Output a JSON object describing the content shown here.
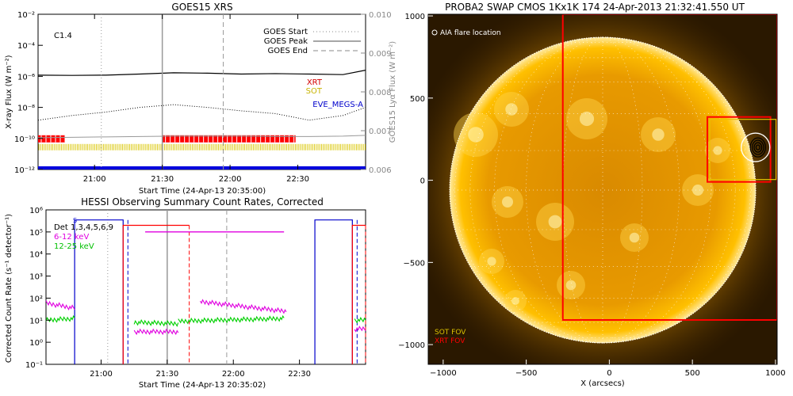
{
  "chart_data": [
    {
      "type": "line",
      "title": "GOES15 XRS",
      "xlabel": "Start Time (24-Apr-13 20:35:00)",
      "ylabel": "X-ray Flux (W m⁻²)",
      "ylabel_right": "GOES15 Lyα Flux (W m⁻²)",
      "xticks": [
        "21:00",
        "21:30",
        "22:00",
        "22:30"
      ],
      "yticks_left": [
        "10⁻²",
        "10⁻⁴",
        "10⁻⁶",
        "10⁻⁸",
        "10⁻¹⁰",
        "10⁻¹²"
      ],
      "yticks_right": [
        "0.010",
        "0.009",
        "0.008",
        "0.007",
        "0.006"
      ],
      "class_label": "C1.4",
      "legend": [
        "GOES Start",
        "GOES Peak",
        "GOES End"
      ],
      "instrument_labels": [
        {
          "text": "XRT",
          "color": "#d40000"
        },
        {
          "text": "SOT",
          "color": "#c8b400"
        },
        {
          "text": "EVE_MEGS-A",
          "color": "#0000cc"
        }
      ],
      "x": [
        "20:35",
        "20:50",
        "21:05",
        "21:20",
        "21:35",
        "21:50",
        "22:05",
        "22:20",
        "22:35",
        "22:50",
        "23:00"
      ],
      "series": [
        {
          "values": [
            1.2e-06,
            1.15e-06,
            1.2e-06,
            1.4e-06,
            1.7e-06,
            1.6e-06,
            1.4e-06,
            1.5e-06,
            1.4e-06,
            1.3e-06,
            2.5e-06
          ]
        },
        {
          "values": [
            1.5e-09,
            3e-09,
            5e-09,
            1e-08,
            1.5e-08,
            1e-08,
            6e-09,
            4e-09,
            1.5e-09,
            3e-09,
            1e-08
          ]
        },
        {
          "values": [
            0.00682,
            0.00683,
            0.00684,
            0.00685,
            0.00686,
            0.00686,
            0.00686,
            0.00685,
            0.00685,
            0.00686,
            0.00688
          ]
        }
      ],
      "vlines": {
        "start": "21:03",
        "peak": "21:30",
        "end": "21:57"
      },
      "observing_bars": {
        "xrt": [
          [
            "20:35",
            "20:47"
          ],
          [
            "21:30",
            "22:29"
          ]
        ],
        "sot": [
          [
            "20:35",
            "23:00"
          ]
        ],
        "eve": [
          [
            "20:35",
            "23:00"
          ]
        ]
      }
    },
    {
      "type": "line",
      "title": "HESSI Observing Summary Count Rates, Corrected",
      "xlabel": "Start Time (24-Apr-13 20:35:02)",
      "ylabel": "Corrected Count Rate (s⁻¹ detector⁻¹)",
      "xticks": [
        "21:00",
        "21:30",
        "22:00",
        "22:30"
      ],
      "yticks": [
        "10⁶",
        "10⁵",
        "10⁴",
        "10³",
        "10²",
        "10¹",
        "10⁰",
        "10⁻¹"
      ],
      "det_label": "Det 1,3,4,5,6,9",
      "s_label": "S",
      "series": [
        {
          "name": "6-12 keV",
          "color": "#e000e0",
          "segments": [
            {
              "x": [
                "20:35",
                "20:48"
              ],
              "values": [
                60,
                35
              ]
            },
            {
              "x": [
                "21:15",
                "21:35"
              ],
              "values": [
                3,
                3
              ]
            },
            {
              "x": [
                "21:45",
                "22:24"
              ],
              "values": [
                70,
                25
              ]
            },
            {
              "x": [
                "22:55",
                "23:00"
              ],
              "values": [
                4,
                4
              ]
            }
          ],
          "plateau": {
            "x": [
              "21:20",
              "22:23"
            ],
            "value": 100000.0
          }
        },
        {
          "name": "12-25 keV",
          "color": "#00d000",
          "segments": [
            {
              "x": [
                "20:35",
                "20:48"
              ],
              "values": [
                10,
                12
              ]
            },
            {
              "x": [
                "21:15",
                "21:35"
              ],
              "values": [
                8,
                7
              ]
            },
            {
              "x": [
                "21:35",
                "22:23"
              ],
              "values": [
                9,
                12
              ]
            },
            {
              "x": [
                "22:55",
                "23:00"
              ],
              "values": [
                10,
                10
              ]
            }
          ]
        }
      ],
      "attenuator_blue": [
        [
          "20:48",
          "21:10"
        ],
        [
          "22:37",
          "22:54"
        ]
      ],
      "attenuator_red": [
        [
          "21:10",
          "21:40"
        ],
        [
          "22:54",
          "23:00"
        ]
      ]
    },
    {
      "type": "scatter",
      "title": "PROBA2 SWAP CMOS 1Kx1K 174 24-Apr-2013 21:32:41.550 UT",
      "xlabel": "X (arcsecs)",
      "ylabel": "Y (arcsecs)",
      "xticks": [
        "−1000",
        "−500",
        "0",
        "500",
        "1000"
      ],
      "yticks": [
        "1000",
        "500",
        "0",
        "−500",
        "−1000"
      ],
      "xlim": [
        -1090,
        1010
      ],
      "ylim": [
        -1120,
        1010
      ],
      "annotation": "AIA flare location",
      "flare_location": {
        "x": 880,
        "y": 200
      },
      "fov_labels": [
        {
          "text": "SOT FOV",
          "color": "#d9c000"
        },
        {
          "text": "XRT FOV",
          "color": "#ff0000"
        }
      ],
      "xrt_fov": {
        "x": [
          -280,
          1010
        ],
        "y": [
          -850,
          1010
        ]
      },
      "sot_fov": {
        "x": [
          590,
          970
        ],
        "y": [
          -10,
          385
        ]
      },
      "colors": {
        "sun": "#ffb800",
        "xrt": "#ff0000",
        "sot": "#e8c400"
      }
    }
  ]
}
